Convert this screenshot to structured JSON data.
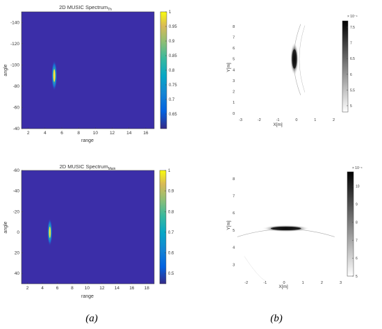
{
  "chart_data": [
    {
      "type": "heatmap",
      "panel": "a-top",
      "title": "2D MUSIC Spectrum",
      "title_sub": "Th",
      "xlabel": "range",
      "ylabel": "angle",
      "xlim": [
        1.2,
        17
      ],
      "ylim": [
        -150,
        -40
      ],
      "y_reversed": true,
      "xticks": [
        "2",
        "4",
        "6",
        "8",
        "10",
        "12",
        "14",
        "16"
      ],
      "yticks": [
        "-140",
        "-120",
        "-100",
        "-80",
        "-60",
        "-40"
      ],
      "colorbar": {
        "min": 0.6,
        "max": 1,
        "ticks": [
          "1",
          "0.95",
          "0.9",
          "0.85",
          "0.8",
          "0.75",
          "0.7",
          "0.65"
        ]
      },
      "peak": {
        "x": 5.1,
        "y": -90,
        "value": 1
      },
      "colors": {
        "background": "#3b2ea8",
        "peak": "#ffe23a"
      }
    },
    {
      "type": "heatmap",
      "panel": "a-bottom",
      "title": "2D MUSIC Spectrum",
      "title_sub": "Main",
      "xlabel": "range",
      "ylabel": "angle",
      "xlim": [
        1.2,
        19
      ],
      "ylim": [
        -60,
        50
      ],
      "y_reversed": true,
      "xticks": [
        "2",
        "4",
        "6",
        "8",
        "10",
        "12",
        "14",
        "16",
        "18"
      ],
      "yticks": [
        "-60",
        "-40",
        "-20",
        "0",
        "20",
        "40"
      ],
      "colorbar": {
        "min": 0.45,
        "max": 1,
        "ticks": [
          "1",
          "0.9",
          "0.8",
          "0.7",
          "0.6",
          "0.5"
        ]
      },
      "peak": {
        "x": 5.0,
        "y": 0,
        "value": 1
      },
      "colors": {
        "background": "#3b2ea8",
        "peak": "#ffe23a"
      }
    },
    {
      "type": "heatmap",
      "panel": "b-top",
      "xlabel": "X[m]",
      "ylabel": "Y[m]",
      "xlim": [
        -3.2,
        2.5
      ],
      "ylim": [
        -0.2,
        8.5
      ],
      "xticks": [
        "-3",
        "-2",
        "-1",
        "0",
        "1",
        "2"
      ],
      "yticks": [
        "0",
        "1",
        "2",
        "3",
        "4",
        "5",
        "6",
        "7",
        "8"
      ],
      "colorbar": {
        "exponent": "× 10⁻⁴",
        "min": 4.8,
        "max": 7.7,
        "ticks": [
          "7.5",
          "7",
          "6.5",
          "6",
          "5.5",
          "5"
        ]
      },
      "target": {
        "x": 0,
        "y": 5
      },
      "colors": {
        "peak": "#111111"
      }
    },
    {
      "type": "heatmap",
      "panel": "b-bottom",
      "xlabel": "X[m]",
      "ylabel": "Y[m]",
      "xlim": [
        -2.5,
        3.2
      ],
      "ylim": [
        2.2,
        8.4
      ],
      "xticks": [
        "-2",
        "-1",
        "0",
        "1",
        "2",
        "3"
      ],
      "yticks": [
        "3",
        "4",
        "5",
        "6",
        "7",
        "8"
      ],
      "colorbar": {
        "exponent": "× 10⁻⁴",
        "min": 5,
        "max": 10.8,
        "ticks": [
          "10",
          "9",
          "8",
          "7",
          "6",
          "5"
        ]
      },
      "target": {
        "x": 0.1,
        "y": 5.1
      },
      "colors": {
        "peak": "#111111"
      }
    }
  ],
  "captions": {
    "a": "(a)",
    "b": "(b)"
  }
}
